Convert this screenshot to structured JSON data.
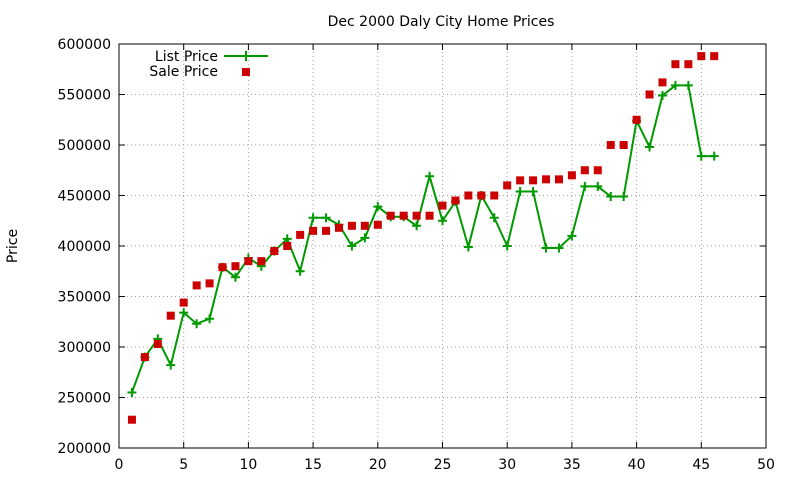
{
  "chart_data": {
    "type": "scatter",
    "title": "Dec 2000 Daly City Home Prices",
    "xlabel": "",
    "ylabel": "Price",
    "xlim": [
      0,
      50
    ],
    "ylim": [
      200000,
      600000
    ],
    "xticks": [
      0,
      5,
      10,
      15,
      20,
      25,
      30,
      35,
      40,
      45,
      50
    ],
    "yticks": [
      200000,
      250000,
      300000,
      350000,
      400000,
      450000,
      500000,
      550000,
      600000
    ],
    "grid": true,
    "legend_position": "top-left",
    "series": [
      {
        "name": "List Price",
        "style": "linespoints",
        "marker": "plus",
        "color": "#009900",
        "x": [
          1,
          2,
          3,
          4,
          5,
          6,
          7,
          8,
          9,
          10,
          11,
          12,
          13,
          14,
          15,
          16,
          17,
          18,
          19,
          20,
          21,
          22,
          23,
          24,
          25,
          26,
          27,
          28,
          29,
          30,
          31,
          32,
          33,
          34,
          35,
          36,
          37,
          38,
          39,
          40,
          41,
          42,
          43,
          44,
          45,
          46
        ],
        "y": [
          255000,
          290000,
          308000,
          282000,
          334000,
          323000,
          328000,
          379000,
          369000,
          388000,
          380000,
          395000,
          407000,
          375000,
          428000,
          428000,
          421000,
          400000,
          408000,
          439000,
          429000,
          429000,
          420000,
          469000,
          425000,
          444000,
          399000,
          450000,
          428000,
          400000,
          454000,
          454000,
          398000,
          398000,
          410000,
          459000,
          459000,
          449000,
          449000,
          524000,
          498000,
          549000,
          559000,
          559000,
          489000,
          489000
        ]
      },
      {
        "name": "Sale Price",
        "style": "points",
        "marker": "square",
        "color": "#cc0000",
        "x": [
          1,
          2,
          3,
          4,
          5,
          6,
          7,
          8,
          9,
          10,
          11,
          12,
          13,
          14,
          15,
          16,
          17,
          18,
          19,
          20,
          21,
          22,
          23,
          24,
          25,
          26,
          27,
          28,
          29,
          30,
          31,
          32,
          33,
          34,
          35,
          36,
          37,
          38,
          39,
          40,
          41,
          42,
          43,
          44,
          45,
          46
        ],
        "y": [
          228000,
          290000,
          303000,
          331000,
          344000,
          361000,
          363000,
          379000,
          380000,
          385000,
          385000,
          395000,
          400000,
          411000,
          415000,
          415000,
          418000,
          420000,
          420000,
          421000,
          430000,
          430000,
          430000,
          430000,
          440000,
          445000,
          450000,
          450000,
          450000,
          460000,
          465000,
          465000,
          466000,
          466000,
          470000,
          475000,
          475000,
          500000,
          500000,
          525000,
          550000,
          562000,
          580000,
          580000,
          588000,
          588000
        ]
      }
    ]
  }
}
